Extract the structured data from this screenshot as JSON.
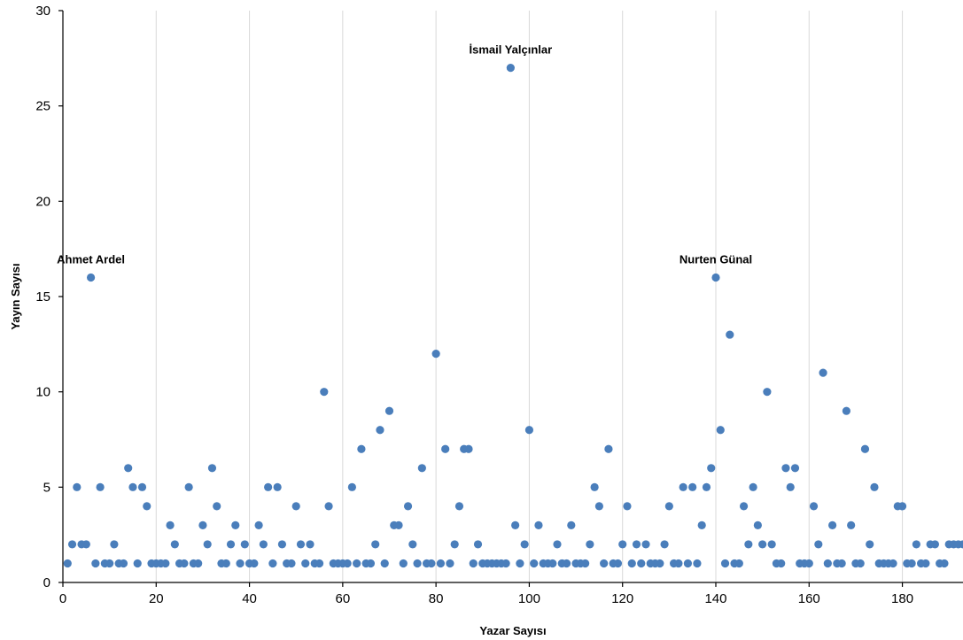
{
  "chart_data": {
    "type": "scatter",
    "title": "",
    "xlabel": "Yazar Sayısı",
    "ylabel": "Yayın Sayısı",
    "xlim": [
      0,
      193
    ],
    "ylim": [
      0,
      30
    ],
    "xticks": [
      0,
      20,
      40,
      60,
      80,
      100,
      120,
      140,
      160,
      180
    ],
    "yticks": [
      0,
      5,
      10,
      15,
      20,
      25,
      30
    ],
    "grid": "vertical",
    "marker_color": "#4a7ebb",
    "series": [
      {
        "x": [
          1,
          2,
          3,
          4,
          5,
          6,
          7,
          8,
          9,
          10,
          11,
          12,
          13,
          14,
          15,
          16,
          17,
          18,
          19,
          20,
          21,
          22,
          23,
          24,
          25,
          26,
          27,
          28,
          29,
          30,
          31,
          32,
          33,
          34,
          35,
          36,
          37,
          38,
          39,
          40,
          41,
          42,
          43,
          44,
          45,
          46,
          47,
          48,
          49,
          50,
          51,
          52,
          53,
          54,
          55,
          56,
          57,
          58,
          59,
          60,
          61,
          62,
          63,
          64,
          65,
          66,
          67,
          68,
          69,
          70,
          71,
          72,
          73,
          74,
          75,
          76,
          77,
          78,
          79,
          80,
          81,
          82,
          83,
          84,
          85,
          86,
          87,
          88,
          89,
          90,
          91,
          92,
          93,
          94,
          95,
          96,
          97,
          98,
          99,
          100,
          101,
          102,
          103,
          104,
          105,
          106,
          107,
          108,
          109,
          110,
          111,
          112,
          113,
          114,
          115,
          116,
          117,
          118,
          119,
          120,
          121,
          122,
          123,
          124,
          125,
          126,
          127,
          128,
          129,
          130,
          131,
          132,
          133,
          134,
          135,
          136,
          137,
          138,
          139,
          140,
          141,
          142,
          143,
          144,
          145,
          146,
          147,
          148,
          149,
          150,
          151,
          152,
          153,
          154,
          155,
          156,
          157,
          158,
          159,
          160,
          161,
          162,
          163,
          164,
          165,
          166,
          167,
          168,
          169,
          170,
          171,
          172,
          173,
          174,
          175,
          176,
          177,
          178,
          179,
          180,
          181,
          182,
          183,
          184,
          185,
          186,
          187,
          188,
          189,
          190,
          191,
          192,
          193
        ],
        "y": [
          1,
          2,
          5,
          2,
          2,
          16,
          1,
          5,
          1,
          1,
          2,
          1,
          1,
          6,
          5,
          1,
          5,
          4,
          1,
          1,
          1,
          1,
          3,
          2,
          1,
          1,
          5,
          1,
          1,
          3,
          2,
          6,
          4,
          1,
          1,
          2,
          3,
          1,
          2,
          1,
          1,
          3,
          2,
          5,
          1,
          5,
          2,
          1,
          1,
          4,
          2,
          1,
          2,
          1,
          1,
          10,
          4,
          1,
          1,
          1,
          1,
          5,
          1,
          7,
          1,
          1,
          2,
          8,
          1,
          9,
          3,
          3,
          1,
          4,
          2,
          1,
          6,
          1,
          1,
          12,
          1,
          7,
          1,
          2,
          4,
          7,
          7,
          1,
          2,
          1,
          1,
          1,
          1,
          1,
          1,
          27,
          3,
          1,
          2,
          8,
          1,
          3,
          1,
          1,
          1,
          2,
          1,
          1,
          3,
          1,
          1,
          1,
          2,
          5,
          4,
          1,
          7,
          1,
          1,
          2,
          4,
          1,
          2,
          1,
          2,
          1,
          1,
          1,
          2,
          4,
          1,
          1,
          5,
          1,
          5,
          1,
          3,
          5,
          6,
          16,
          8,
          1,
          13,
          1,
          1,
          4,
          2,
          5,
          3,
          2,
          10,
          2,
          1,
          1,
          6,
          5,
          6,
          1,
          1,
          1,
          4,
          2,
          11,
          1,
          3,
          1,
          1,
          9,
          3,
          1,
          1,
          7,
          2,
          5,
          1,
          1,
          1,
          1,
          4,
          4,
          1,
          1,
          2,
          1,
          1,
          2,
          2,
          1,
          1,
          2,
          2,
          2,
          2
        ]
      }
    ],
    "annotations": [
      {
        "text": "Ahmet Ardel",
        "x": 6,
        "y": 16
      },
      {
        "text": "İsmail Yalçınlar",
        "x": 96,
        "y": 27
      },
      {
        "text": "Nurten Günal",
        "x": 140,
        "y": 16
      }
    ]
  }
}
